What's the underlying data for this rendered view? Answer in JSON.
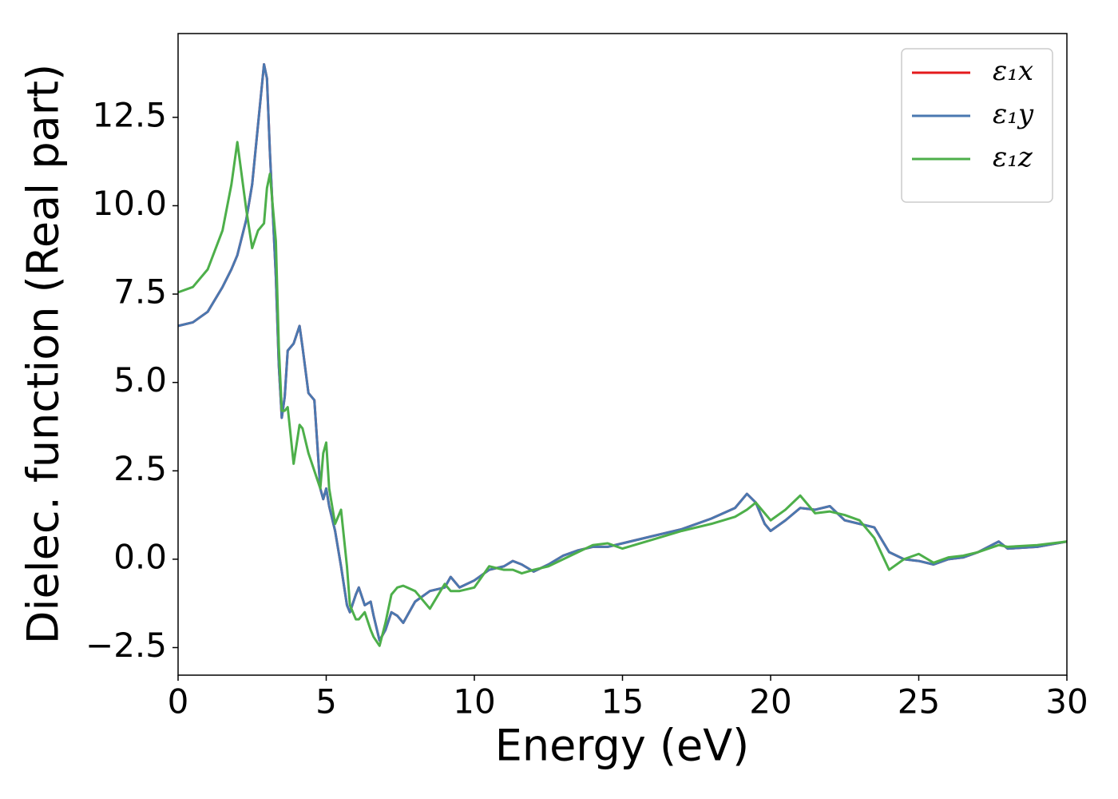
{
  "chart_data": {
    "type": "line",
    "xlabel": "Energy (eV)",
    "ylabel": "Dielec. function (Real part)",
    "xlim": [
      0,
      30
    ],
    "ylim": [
      -3.28,
      14.87
    ],
    "xticks": [
      0,
      5,
      10,
      15,
      20,
      25,
      30
    ],
    "yticks": [
      {
        "value": -2.5,
        "label": "−2.5"
      },
      {
        "value": 0,
        "label": "0.0"
      },
      {
        "value": 2.5,
        "label": "2.5"
      },
      {
        "value": 5,
        "label": "5.0"
      },
      {
        "value": 7.5,
        "label": "7.5"
      },
      {
        "value": 10,
        "label": "10.0"
      },
      {
        "value": 12.5,
        "label": "12.5"
      }
    ],
    "grid": false,
    "legend": "upper right",
    "x": [
      0,
      0.5,
      1,
      1.5,
      1.8,
      2,
      2.3,
      2.5,
      2.7,
      2.9,
      3,
      3.1,
      3.3,
      3.4,
      3.5,
      3.6,
      3.7,
      3.9,
      4.1,
      4.2,
      4.4,
      4.6,
      4.8,
      4.9,
      5,
      5.1,
      5.3,
      5.5,
      5.7,
      5.8,
      6,
      6.1,
      6.3,
      6.5,
      6.6,
      6.8,
      7,
      7.2,
      7.4,
      7.6,
      8,
      8.5,
      9,
      9.2,
      9.5,
      10,
      10.5,
      11,
      11.3,
      11.6,
      12,
      12.5,
      13,
      13.5,
      14,
      14.5,
      15,
      16,
      17,
      18,
      18.8,
      19.2,
      19.5,
      19.8,
      20,
      20.5,
      21,
      21.5,
      22,
      22.5,
      23,
      23.5,
      24,
      24.5,
      25,
      25.5,
      26,
      26.5,
      27,
      27.7,
      28,
      29,
      30
    ],
    "series": [
      {
        "name": "ε₁x",
        "color": "#e41a1c",
        "values": [
          6.6,
          6.7,
          7.0,
          7.7,
          8.2,
          8.6,
          9.6,
          10.6,
          12.3,
          14.0,
          13.6,
          11.5,
          8.0,
          5.5,
          4.0,
          4.6,
          5.9,
          6.1,
          6.6,
          6.0,
          4.7,
          4.5,
          2.0,
          1.7,
          2.0,
          1.5,
          0.8,
          -0.2,
          -1.3,
          -1.5,
          -1.0,
          -0.8,
          -1.3,
          -1.2,
          -1.6,
          -2.3,
          -2.0,
          -1.5,
          -1.6,
          -1.8,
          -1.2,
          -0.9,
          -0.8,
          -0.5,
          -0.8,
          -0.6,
          -0.3,
          -0.2,
          -0.05,
          -0.15,
          -0.35,
          -0.15,
          0.1,
          0.25,
          0.35,
          0.35,
          0.45,
          0.65,
          0.85,
          1.15,
          1.45,
          1.85,
          1.6,
          1.0,
          0.8,
          1.1,
          1.45,
          1.4,
          1.5,
          1.1,
          1.0,
          0.9,
          0.2,
          0.0,
          -0.05,
          -0.15,
          0.0,
          0.05,
          0.2,
          0.5,
          0.3,
          0.35,
          0.5
        ]
      },
      {
        "name": "ε₁y",
        "color": "#4a78b0",
        "values": [
          6.6,
          6.7,
          7.0,
          7.7,
          8.2,
          8.6,
          9.6,
          10.6,
          12.3,
          14.0,
          13.6,
          11.5,
          8.0,
          5.5,
          4.0,
          4.6,
          5.9,
          6.1,
          6.6,
          6.0,
          4.7,
          4.5,
          2.0,
          1.7,
          2.0,
          1.5,
          0.8,
          -0.2,
          -1.3,
          -1.5,
          -1.0,
          -0.8,
          -1.3,
          -1.2,
          -1.6,
          -2.3,
          -2.0,
          -1.5,
          -1.6,
          -1.8,
          -1.2,
          -0.9,
          -0.8,
          -0.5,
          -0.8,
          -0.6,
          -0.3,
          -0.2,
          -0.05,
          -0.15,
          -0.35,
          -0.15,
          0.1,
          0.25,
          0.35,
          0.35,
          0.45,
          0.65,
          0.85,
          1.15,
          1.45,
          1.85,
          1.6,
          1.0,
          0.8,
          1.1,
          1.45,
          1.4,
          1.5,
          1.1,
          1.0,
          0.9,
          0.2,
          0.0,
          -0.05,
          -0.15,
          0.0,
          0.05,
          0.2,
          0.5,
          0.3,
          0.35,
          0.5
        ]
      },
      {
        "name": "ε₁z",
        "color": "#4daf4a",
        "values": [
          7.55,
          7.7,
          8.2,
          9.3,
          10.6,
          11.8,
          9.9,
          8.8,
          9.3,
          9.5,
          10.5,
          10.9,
          9.0,
          6.0,
          4.2,
          4.2,
          4.3,
          2.7,
          3.8,
          3.7,
          3.0,
          2.5,
          2.0,
          3.0,
          3.3,
          2.0,
          1.0,
          1.4,
          -0.2,
          -1.3,
          -1.7,
          -1.7,
          -1.5,
          -2.0,
          -2.2,
          -2.45,
          -1.8,
          -1.0,
          -0.8,
          -0.75,
          -0.9,
          -1.4,
          -0.7,
          -0.9,
          -0.9,
          -0.8,
          -0.2,
          -0.3,
          -0.3,
          -0.4,
          -0.3,
          -0.2,
          0.0,
          0.2,
          0.4,
          0.45,
          0.3,
          0.55,
          0.8,
          1.0,
          1.2,
          1.4,
          1.6,
          1.3,
          1.1,
          1.4,
          1.8,
          1.3,
          1.35,
          1.25,
          1.1,
          0.6,
          -0.3,
          0.0,
          0.15,
          -0.1,
          0.05,
          0.1,
          0.2,
          0.4,
          0.35,
          0.4,
          0.5
        ]
      }
    ]
  }
}
